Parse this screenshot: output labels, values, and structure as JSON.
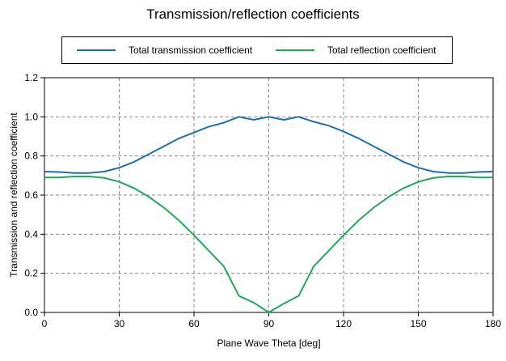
{
  "chart_data": {
    "type": "line",
    "title": "Transmission/reflection coefficients",
    "xlabel": "Plane Wave Theta [deg]",
    "ylabel": "Transmission and reflection coefficient",
    "xlim": [
      0,
      180
    ],
    "ylim": [
      0,
      1.2
    ],
    "xticks": [
      "0",
      "30",
      "60",
      "90",
      "120",
      "150",
      "180"
    ],
    "yticks": [
      "0.0",
      "0.2",
      "0.4",
      "0.6",
      "0.8",
      "1.0",
      "1.2"
    ],
    "grid": true,
    "legend_position": "top",
    "series": [
      {
        "name": "Total transmission coefficient",
        "color": "#1f6fad",
        "x": [
          0,
          6,
          12,
          18,
          24,
          30,
          36,
          42,
          48,
          54,
          60,
          66,
          72,
          78,
          84,
          90,
          96,
          102,
          108,
          114,
          120,
          126,
          132,
          138,
          144,
          150,
          156,
          162,
          168,
          174,
          180
        ],
        "y": [
          0.72,
          0.718,
          0.713,
          0.713,
          0.72,
          0.74,
          0.77,
          0.81,
          0.85,
          0.89,
          0.92,
          0.95,
          0.97,
          1.0,
          0.985,
          1.0,
          0.985,
          1.0,
          0.975,
          0.955,
          0.925,
          0.89,
          0.85,
          0.81,
          0.77,
          0.74,
          0.72,
          0.713,
          0.713,
          0.718,
          0.72
        ]
      },
      {
        "name": "Total reflection coefficient",
        "color": "#22a85a",
        "x": [
          0,
          6,
          12,
          18,
          24,
          30,
          36,
          42,
          48,
          54,
          60,
          66,
          72,
          78,
          84,
          90,
          96,
          102,
          108,
          114,
          120,
          126,
          132,
          138,
          144,
          150,
          156,
          162,
          168,
          174,
          180
        ],
        "y": [
          0.69,
          0.69,
          0.695,
          0.695,
          0.688,
          0.668,
          0.635,
          0.59,
          0.535,
          0.47,
          0.395,
          0.315,
          0.235,
          0.085,
          0.05,
          0.0,
          0.045,
          0.085,
          0.235,
          0.315,
          0.395,
          0.47,
          0.535,
          0.59,
          0.635,
          0.668,
          0.688,
          0.695,
          0.695,
          0.69,
          0.69
        ]
      }
    ]
  }
}
